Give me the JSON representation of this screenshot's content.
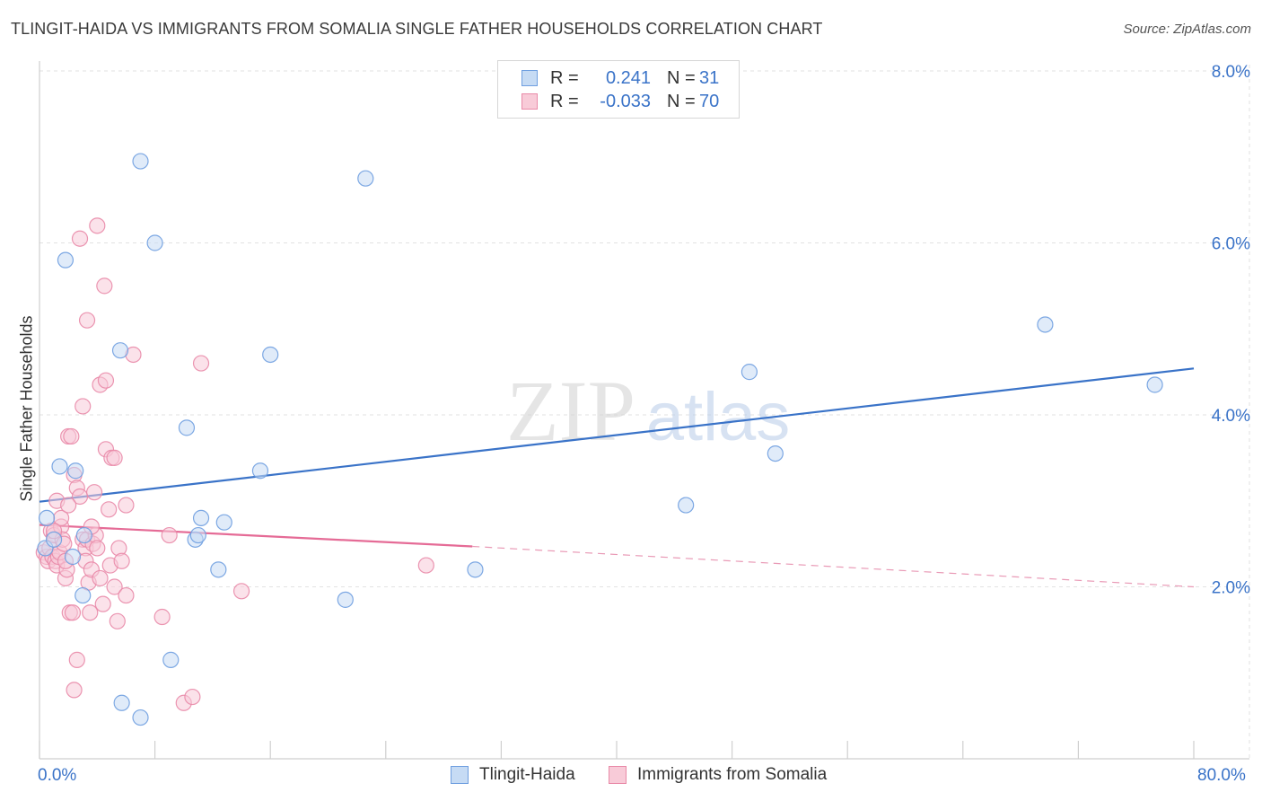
{
  "header": {
    "title": "TLINGIT-HAIDA VS IMMIGRANTS FROM SOMALIA SINGLE FATHER HOUSEHOLDS CORRELATION CHART",
    "source": "Source: ZipAtlas.com"
  },
  "watermark": {
    "zip": "ZIP",
    "atlas": "atlas"
  },
  "legend_top": {
    "rows": [
      {
        "r_label": "R =",
        "r_value": "0.241",
        "n_label": "N =",
        "n_value": "31",
        "color": "#a9c8ee"
      },
      {
        "r_label": "R =",
        "r_value": "-0.033",
        "n_label": "N =",
        "n_value": "70",
        "color": "#f5b8cb"
      }
    ]
  },
  "legend_bottom": {
    "items": [
      {
        "label": "Tlingit-Haida",
        "color": "#a9c8ee"
      },
      {
        "label": "Immigrants from Somalia",
        "color": "#f5b8cb"
      }
    ]
  },
  "chart_data": {
    "type": "scatter",
    "title": "TLINGIT-HAIDA VS IMMIGRANTS FROM SOMALIA SINGLE FATHER HOUSEHOLDS CORRELATION CHART",
    "xlabel": "",
    "ylabel": "Single Father Households",
    "xlim": [
      0,
      80
    ],
    "ylim": [
      0,
      8.4
    ],
    "x_tick_labels": [
      "0.0%",
      "80.0%"
    ],
    "y_ticks": [
      2.0,
      4.0,
      6.0,
      8.0
    ],
    "y_tick_labels": [
      "2.0%",
      "4.0%",
      "6.0%",
      "8.0%"
    ],
    "grid": true,
    "legend_position": "top-center",
    "series": [
      {
        "name": "Tlingit-Haida",
        "color": "#6f9fe0",
        "fill": "#c6dbf4",
        "points": [
          [
            0.5,
            2.8
          ],
          [
            0.4,
            2.45
          ],
          [
            1.0,
            2.55
          ],
          [
            1.4,
            3.4
          ],
          [
            2.5,
            3.35
          ],
          [
            1.8,
            5.8
          ],
          [
            2.3,
            2.35
          ],
          [
            3.1,
            2.6
          ],
          [
            3.0,
            1.9
          ],
          [
            5.6,
            4.75
          ],
          [
            7.0,
            6.95
          ],
          [
            8.0,
            6.0
          ],
          [
            9.1,
            1.15
          ],
          [
            10.2,
            3.85
          ],
          [
            10.8,
            2.55
          ],
          [
            11.0,
            2.6
          ],
          [
            11.2,
            2.8
          ],
          [
            12.4,
            2.2
          ],
          [
            12.8,
            2.75
          ],
          [
            15.3,
            3.35
          ],
          [
            16.0,
            4.7
          ],
          [
            21.2,
            1.85
          ],
          [
            22.6,
            6.75
          ],
          [
            30.2,
            2.2
          ],
          [
            5.7,
            0.65
          ],
          [
            7.0,
            0.48
          ],
          [
            44.8,
            2.95
          ],
          [
            49.2,
            4.5
          ],
          [
            51.0,
            3.55
          ],
          [
            69.7,
            5.05
          ],
          [
            77.3,
            4.35
          ]
        ],
        "trendline": {
          "x0": 0,
          "y0": 2.99,
          "x1": 80,
          "y1": 4.54
        }
      },
      {
        "name": "Immigrants from Somalia",
        "color": "#e98aa8",
        "fill": "#f8cbd8",
        "points": [
          [
            0.3,
            2.4
          ],
          [
            0.5,
            2.35
          ],
          [
            0.6,
            2.3
          ],
          [
            0.7,
            2.45
          ],
          [
            0.8,
            2.65
          ],
          [
            0.9,
            2.35
          ],
          [
            1.0,
            2.6
          ],
          [
            1.1,
            2.3
          ],
          [
            1.2,
            2.25
          ],
          [
            1.3,
            2.35
          ],
          [
            1.4,
            2.4
          ],
          [
            1.5,
            2.7
          ],
          [
            1.6,
            2.55
          ],
          [
            1.7,
            2.5
          ],
          [
            1.8,
            2.1
          ],
          [
            1.9,
            2.2
          ],
          [
            1.2,
            3.0
          ],
          [
            1.5,
            2.8
          ],
          [
            1.8,
            2.3
          ],
          [
            2.0,
            3.75
          ],
          [
            2.2,
            3.75
          ],
          [
            2.4,
            3.3
          ],
          [
            2.6,
            3.15
          ],
          [
            2.8,
            3.05
          ],
          [
            3.0,
            2.55
          ],
          [
            3.2,
            2.45
          ],
          [
            2.0,
            2.95
          ],
          [
            2.1,
            1.7
          ],
          [
            2.3,
            1.7
          ],
          [
            2.4,
            0.8
          ],
          [
            2.6,
            1.15
          ],
          [
            2.8,
            6.05
          ],
          [
            3.0,
            4.1
          ],
          [
            3.2,
            2.3
          ],
          [
            3.3,
            2.55
          ],
          [
            3.4,
            2.05
          ],
          [
            3.5,
            1.7
          ],
          [
            3.6,
            2.2
          ],
          [
            3.7,
            2.5
          ],
          [
            3.8,
            3.1
          ],
          [
            3.9,
            2.6
          ],
          [
            4.0,
            6.2
          ],
          [
            3.3,
            5.1
          ],
          [
            4.0,
            2.45
          ],
          [
            4.2,
            2.1
          ],
          [
            4.4,
            1.8
          ],
          [
            4.5,
            5.5
          ],
          [
            4.2,
            4.35
          ],
          [
            4.6,
            3.6
          ],
          [
            4.8,
            2.9
          ],
          [
            5.0,
            3.5
          ],
          [
            4.6,
            4.4
          ],
          [
            4.9,
            2.25
          ],
          [
            5.2,
            2.0
          ],
          [
            5.4,
            1.6
          ],
          [
            5.5,
            2.45
          ],
          [
            5.7,
            2.3
          ],
          [
            6.0,
            2.95
          ],
          [
            5.2,
            3.5
          ],
          [
            6.5,
            4.7
          ],
          [
            8.5,
            1.65
          ],
          [
            9.0,
            2.6
          ],
          [
            10.0,
            0.65
          ],
          [
            10.6,
            0.72
          ],
          [
            11.2,
            4.6
          ],
          [
            14.0,
            1.95
          ],
          [
            6.0,
            1.9
          ],
          [
            3.6,
            2.7
          ],
          [
            1.0,
            2.65
          ],
          [
            26.8,
            2.25
          ]
        ],
        "trendline": {
          "x0": 0,
          "y0": 2.72,
          "x1": 30,
          "y1": 2.47,
          "dashed_to_x": 80,
          "dashed_to_y": 2.0
        }
      }
    ]
  }
}
